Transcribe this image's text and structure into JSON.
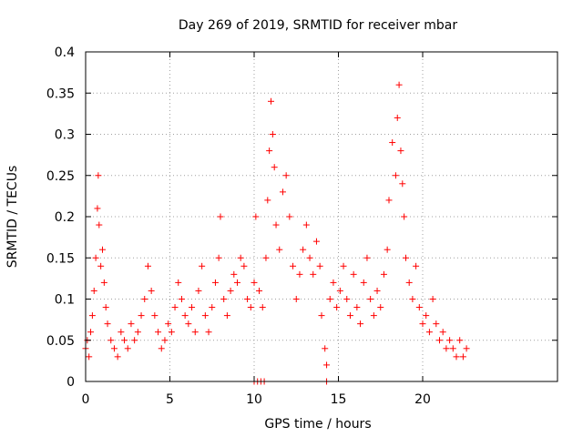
{
  "chart_data": {
    "type": "scatter",
    "title": "Day 269 of 2019, SRMTID for receiver mbar",
    "xlabel": "GPS time / hours",
    "ylabel": "SRMTID / TECUs",
    "xlim": [
      0,
      28
    ],
    "ylim": [
      0,
      0.4
    ],
    "x_ticks": [
      0,
      5,
      10,
      15,
      20
    ],
    "x_tick_labels": [
      "0",
      "5",
      "10",
      "15",
      "20"
    ],
    "y_ticks": [
      0,
      0.05,
      0.1,
      0.15,
      0.2,
      0.25,
      0.3,
      0.35,
      0.4
    ],
    "y_tick_labels": [
      "0",
      "0.05",
      "0.1",
      "0.15",
      "0.2",
      "0.25",
      "0.3",
      "0.35",
      "0.4"
    ],
    "grid": true,
    "marker": "+",
    "marker_color": "#ff0000",
    "series": [
      {
        "name": "SRMTID",
        "points": [
          [
            0.0,
            0.04
          ],
          [
            0.1,
            0.05
          ],
          [
            0.2,
            0.03
          ],
          [
            0.3,
            0.06
          ],
          [
            0.4,
            0.08
          ],
          [
            0.5,
            0.11
          ],
          [
            0.6,
            0.15
          ],
          [
            0.7,
            0.21
          ],
          [
            0.75,
            0.25
          ],
          [
            0.8,
            0.19
          ],
          [
            0.9,
            0.14
          ],
          [
            1.0,
            0.16
          ],
          [
            1.1,
            0.12
          ],
          [
            1.2,
            0.09
          ],
          [
            1.3,
            0.07
          ],
          [
            1.5,
            0.05
          ],
          [
            1.7,
            0.04
          ],
          [
            1.9,
            0.03
          ],
          [
            2.1,
            0.06
          ],
          [
            2.3,
            0.05
          ],
          [
            2.5,
            0.04
          ],
          [
            2.7,
            0.07
          ],
          [
            2.9,
            0.05
          ],
          [
            3.1,
            0.06
          ],
          [
            3.3,
            0.08
          ],
          [
            3.5,
            0.1
          ],
          [
            3.7,
            0.14
          ],
          [
            3.9,
            0.11
          ],
          [
            4.1,
            0.08
          ],
          [
            4.3,
            0.06
          ],
          [
            4.5,
            0.04
          ],
          [
            4.7,
            0.05
          ],
          [
            4.9,
            0.07
          ],
          [
            5.1,
            0.06
          ],
          [
            5.3,
            0.09
          ],
          [
            5.5,
            0.12
          ],
          [
            5.7,
            0.1
          ],
          [
            5.9,
            0.08
          ],
          [
            6.1,
            0.07
          ],
          [
            6.3,
            0.09
          ],
          [
            6.5,
            0.06
          ],
          [
            6.7,
            0.11
          ],
          [
            6.9,
            0.14
          ],
          [
            7.1,
            0.08
          ],
          [
            7.3,
            0.06
          ],
          [
            7.5,
            0.09
          ],
          [
            7.7,
            0.12
          ],
          [
            7.9,
            0.15
          ],
          [
            8.0,
            0.2
          ],
          [
            8.2,
            0.1
          ],
          [
            8.4,
            0.08
          ],
          [
            8.6,
            0.11
          ],
          [
            8.8,
            0.13
          ],
          [
            9.0,
            0.12
          ],
          [
            9.2,
            0.15
          ],
          [
            9.4,
            0.14
          ],
          [
            9.6,
            0.1
          ],
          [
            9.8,
            0.09
          ],
          [
            10.0,
            0.12
          ],
          [
            10.1,
            0.2
          ],
          [
            10.3,
            0.11
          ],
          [
            10.5,
            0.09
          ],
          [
            10.7,
            0.15
          ],
          [
            10.8,
            0.22
          ],
          [
            10.9,
            0.28
          ],
          [
            11.0,
            0.34
          ],
          [
            11.1,
            0.3
          ],
          [
            11.2,
            0.26
          ],
          [
            11.3,
            0.19
          ],
          [
            11.5,
            0.16
          ],
          [
            11.7,
            0.23
          ],
          [
            11.9,
            0.25
          ],
          [
            12.1,
            0.2
          ],
          [
            12.3,
            0.14
          ],
          [
            12.5,
            0.1
          ],
          [
            12.7,
            0.13
          ],
          [
            12.9,
            0.16
          ],
          [
            13.1,
            0.19
          ],
          [
            13.3,
            0.15
          ],
          [
            13.5,
            0.13
          ],
          [
            13.7,
            0.17
          ],
          [
            13.9,
            0.14
          ],
          [
            14.0,
            0.08
          ],
          [
            14.2,
            0.04
          ],
          [
            14.3,
            0.02
          ],
          [
            14.5,
            0.1
          ],
          [
            14.7,
            0.12
          ],
          [
            14.9,
            0.09
          ],
          [
            15.1,
            0.11
          ],
          [
            15.3,
            0.14
          ],
          [
            15.5,
            0.1
          ],
          [
            15.7,
            0.08
          ],
          [
            15.9,
            0.13
          ],
          [
            16.1,
            0.09
          ],
          [
            16.3,
            0.07
          ],
          [
            16.5,
            0.12
          ],
          [
            16.7,
            0.15
          ],
          [
            16.9,
            0.1
          ],
          [
            17.1,
            0.08
          ],
          [
            17.3,
            0.11
          ],
          [
            17.5,
            0.09
          ],
          [
            17.7,
            0.13
          ],
          [
            17.9,
            0.16
          ],
          [
            18.0,
            0.22
          ],
          [
            18.2,
            0.29
          ],
          [
            18.4,
            0.25
          ],
          [
            18.5,
            0.32
          ],
          [
            18.6,
            0.36
          ],
          [
            18.7,
            0.28
          ],
          [
            18.8,
            0.24
          ],
          [
            18.9,
            0.2
          ],
          [
            19.0,
            0.15
          ],
          [
            19.2,
            0.12
          ],
          [
            19.4,
            0.1
          ],
          [
            19.6,
            0.14
          ],
          [
            19.8,
            0.09
          ],
          [
            20.0,
            0.07
          ],
          [
            20.2,
            0.08
          ],
          [
            20.4,
            0.06
          ],
          [
            20.6,
            0.1
          ],
          [
            20.8,
            0.07
          ],
          [
            21.0,
            0.05
          ],
          [
            21.2,
            0.06
          ],
          [
            21.4,
            0.04
          ],
          [
            21.6,
            0.05
          ],
          [
            21.8,
            0.04
          ],
          [
            22.0,
            0.03
          ],
          [
            22.2,
            0.05
          ],
          [
            22.4,
            0.03
          ],
          [
            22.6,
            0.04
          ],
          [
            10.0,
            0.0
          ],
          [
            10.2,
            0.0
          ],
          [
            10.4,
            0.0
          ],
          [
            10.6,
            0.0
          ],
          [
            14.3,
            0.0
          ]
        ]
      }
    ]
  }
}
